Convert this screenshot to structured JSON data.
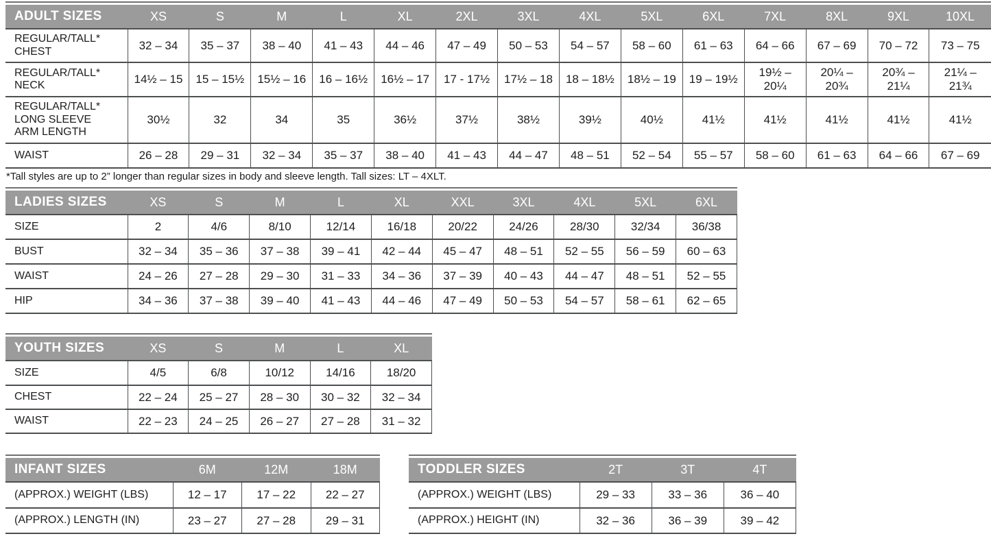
{
  "colors": {
    "header_bg": "#9b9b9b",
    "header_text": "#ffffff",
    "grid_line": "#4d4e50",
    "body_text": "#1d1d1f"
  },
  "footnote": "*Tall styles are up to 2” longer than regular sizes in body and sleeve length. Tall sizes: LT – 4XLT.",
  "tables": {
    "adult": {
      "title": "ADULT SIZES",
      "columns": [
        "XS",
        "S",
        "M",
        "L",
        "XL",
        "2XL",
        "3XL",
        "4XL",
        "5XL",
        "6XL",
        "7XL",
        "8XL",
        "9XL",
        "10XL"
      ],
      "rows": [
        {
          "label": "REGULAR/TALL*\nCHEST",
          "values": [
            "32 – 34",
            "35 – 37",
            "38 – 40",
            "41 – 43",
            "44 – 46",
            "47 – 49",
            "50 – 53",
            "54 – 57",
            "58 – 60",
            "61 – 63",
            "64 – 66",
            "67 – 69",
            "70 – 72",
            "73 – 75"
          ]
        },
        {
          "label": "REGULAR/TALL*\nNECK",
          "values": [
            "14½ – 15",
            "15 – 15½",
            "15½ – 16",
            "16 – 16½",
            "16½ – 17",
            "17 - 17½",
            "17½ – 18",
            "18 – 18½",
            "18½ – 19",
            "19 – 19½",
            "19½ –\n20¼",
            "20¼ –\n20¾",
            "20¾ –\n21¼",
            "21¼ –\n21¾"
          ]
        },
        {
          "label": "REGULAR/TALL*\nLONG SLEEVE\nARM LENGTH",
          "values": [
            "30½",
            "32",
            "34",
            "35",
            "36½",
            "37½",
            "38½",
            "39½",
            "40½",
            "41½",
            "41½",
            "41½",
            "41½",
            "41½"
          ]
        },
        {
          "label": "WAIST",
          "values": [
            "26 – 28",
            "29 – 31",
            "32 – 34",
            "35 – 37",
            "38 – 40",
            "41 – 43",
            "44 – 47",
            "48 – 51",
            "52 – 54",
            "55 – 57",
            "58 – 60",
            "61 – 63",
            "64 – 66",
            "67 – 69"
          ]
        }
      ]
    },
    "ladies": {
      "title": "LADIES SIZES",
      "columns": [
        "XS",
        "S",
        "M",
        "L",
        "XL",
        "XXL",
        "3XL",
        "4XL",
        "5XL",
        "6XL"
      ],
      "rows": [
        {
          "label": "SIZE",
          "values": [
            "2",
            "4/6",
            "8/10",
            "12/14",
            "16/18",
            "20/22",
            "24/26",
            "28/30",
            "32/34",
            "36/38"
          ]
        },
        {
          "label": "BUST",
          "values": [
            "32 – 34",
            "35 – 36",
            "37 – 38",
            "39 – 41",
            "42 – 44",
            "45 – 47",
            "48 – 51",
            "52 – 55",
            "56 – 59",
            "60 – 63"
          ]
        },
        {
          "label": "WAIST",
          "values": [
            "24 – 26",
            "27 – 28",
            "29 – 30",
            "31 – 33",
            "34 – 36",
            "37 – 39",
            "40 – 43",
            "44 – 47",
            "48 – 51",
            "52 – 55"
          ]
        },
        {
          "label": "HIP",
          "values": [
            "34 – 36",
            "37 – 38",
            "39 – 40",
            "41 – 43",
            "44 – 46",
            "47 – 49",
            "50 – 53",
            "54 – 57",
            "58 – 61",
            "62 – 65"
          ]
        }
      ]
    },
    "youth": {
      "title": "YOUTH SIZES",
      "columns": [
        "XS",
        "S",
        "M",
        "L",
        "XL"
      ],
      "rows": [
        {
          "label": "SIZE",
          "values": [
            "4/5",
            "6/8",
            "10/12",
            "14/16",
            "18/20"
          ]
        },
        {
          "label": "CHEST",
          "values": [
            "22 – 24",
            "25 – 27",
            "28 – 30",
            "30 – 32",
            "32 – 34"
          ]
        },
        {
          "label": "WAIST",
          "values": [
            "22 – 23",
            "24 – 25",
            "26 – 27",
            "27 – 28",
            "31 – 32"
          ]
        }
      ]
    },
    "infant": {
      "title": "INFANT SIZES",
      "columns": [
        "6M",
        "12M",
        "18M"
      ],
      "rows": [
        {
          "label": "(APPROX.) WEIGHT (LBS)",
          "values": [
            "12 – 17",
            "17 – 22",
            "22 – 27"
          ]
        },
        {
          "label": "(APPROX.) LENGTH (IN)",
          "values": [
            "23 – 27",
            "27 – 28",
            "29 – 31"
          ]
        }
      ]
    },
    "toddler": {
      "title": "TODDLER SIZES",
      "columns": [
        "2T",
        "3T",
        "4T"
      ],
      "rows": [
        {
          "label": "(APPROX.) WEIGHT (LBS)",
          "values": [
            "29 – 33",
            "33 – 36",
            "36 – 40"
          ]
        },
        {
          "label": "(APPROX.) HEIGHT (IN)",
          "values": [
            "32 – 36",
            "36 – 39",
            "39 – 42"
          ]
        }
      ]
    }
  }
}
